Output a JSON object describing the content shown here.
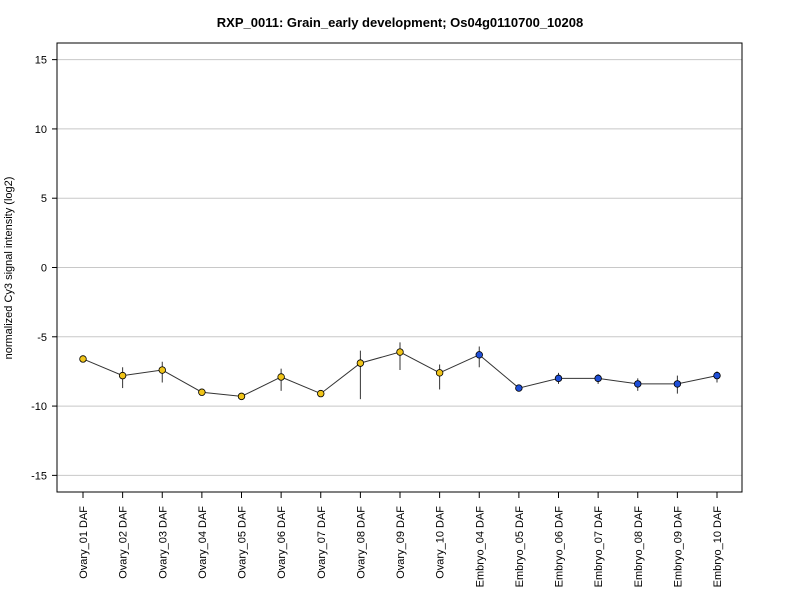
{
  "chart_data": {
    "type": "line",
    "title": "RXP_0011: Grain_early development; Os04g0110700_10208",
    "xlabel": "",
    "ylabel": "normalized Cy3 signal intensity (log2)",
    "ylim": [
      -16.2,
      16.2
    ],
    "yticks": [
      -15,
      -10,
      -5,
      0,
      5,
      10,
      15
    ],
    "grid": true,
    "categories": [
      "Ovary_01 DAF",
      "Ovary_02 DAF",
      "Ovary_03 DAF",
      "Ovary_04 DAF",
      "Ovary_05 DAF",
      "Ovary_06 DAF",
      "Ovary_07 DAF",
      "Ovary_08 DAF",
      "Ovary_09 DAF",
      "Ovary_10 DAF",
      "Embryo_04 DAF",
      "Embryo_05 DAF",
      "Embryo_06 DAF",
      "Embryo_07 DAF",
      "Embryo_08 DAF",
      "Embryo_09 DAF",
      "Embryo_10 DAF"
    ],
    "values": [
      -6.6,
      -7.8,
      -7.4,
      -9.0,
      -9.3,
      -7.9,
      -9.1,
      -6.9,
      -6.1,
      -7.6,
      -6.3,
      -8.7,
      -8.0,
      -8.0,
      -8.4,
      -8.4,
      -7.8
    ],
    "error_low": [
      -6.6,
      -8.7,
      -8.3,
      -9.2,
      -9.5,
      -8.9,
      -9.2,
      -9.5,
      -7.4,
      -8.8,
      -7.2,
      -8.8,
      -8.4,
      -8.4,
      -8.9,
      -9.1,
      -8.3
    ],
    "error_high": [
      -6.6,
      -7.2,
      -6.8,
      -8.8,
      -9.1,
      -7.3,
      -8.9,
      -6.0,
      -5.4,
      -7.0,
      -5.7,
      -8.6,
      -7.6,
      -7.7,
      -8.0,
      -7.8,
      -7.5
    ],
    "colors": [
      "#f0c419",
      "#f0c419",
      "#f0c419",
      "#f0c419",
      "#f0c419",
      "#f0c419",
      "#f0c419",
      "#f0c419",
      "#f0c419",
      "#f0c419",
      "#1f4fd8",
      "#1f4fd8",
      "#1f4fd8",
      "#1f4fd8",
      "#1f4fd8",
      "#1f4fd8",
      "#1f4fd8"
    ]
  }
}
